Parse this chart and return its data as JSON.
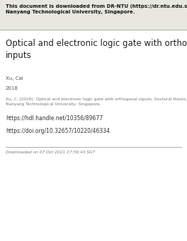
{
  "header_bold_text": "This document is downloaded from DR-NTU (https://dr.ntu.edu.sg)\nNanyang Technological University, Singapore.",
  "title": "Optical and electronic logic gate with orthogonal\ninputs",
  "author": "Xu, Cai",
  "year": "2018",
  "citation": "Xu, C. (2018). Optical and electronic logic gate with orthogonal inputs. Doctoral thesis,\nNanyang Technological University, Singapore.",
  "link1": "https://hdl.handle.net/10356/89677",
  "link2": "https://doi.org/10.32657/10220/46334",
  "footer": "Downloaded on 07 Oct 2021 17:59:43 SGT",
  "bg_color": "#ffffff",
  "header_bg_color": "#e8e8e0",
  "header_text_color": "#111111",
  "title_color": "#222222",
  "body_color": "#555555",
  "citation_color": "#777777",
  "link_color": "#333333",
  "footer_color": "#777777",
  "line_color": "#aaaaaa"
}
